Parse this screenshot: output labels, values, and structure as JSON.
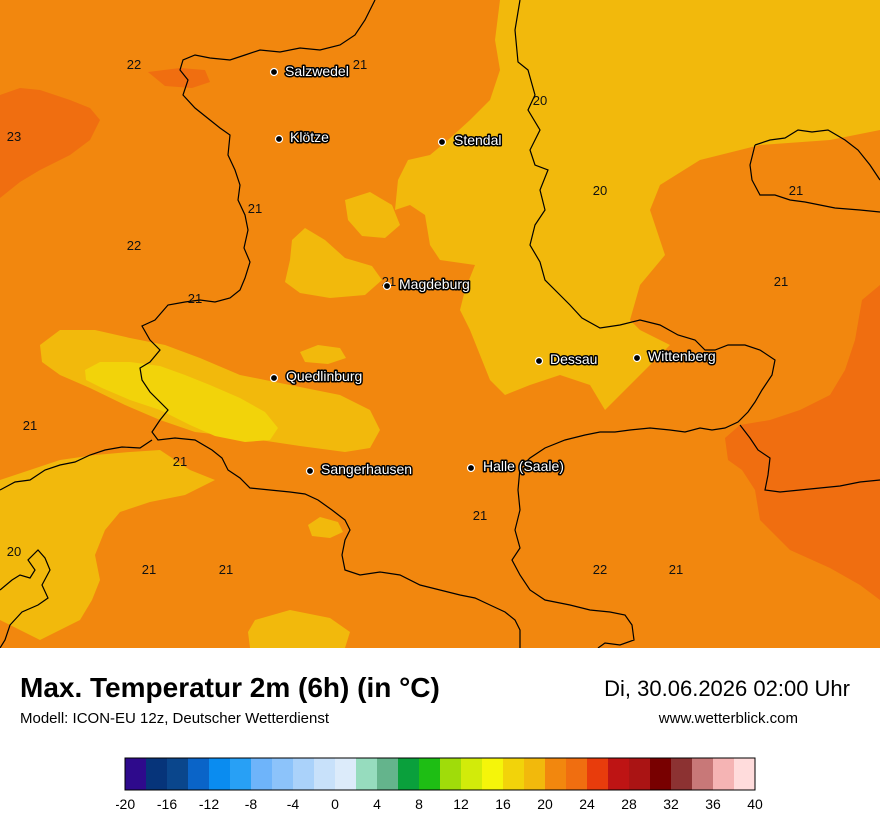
{
  "title": "Max. Temperatur 2m (6h) (in °C)",
  "subtitle": "Modell: ICON-EU 12z, Deutscher Wetterdienst",
  "datetime": "Di, 30.06.2026 02:00 Uhr",
  "website": "www.wetterblick.com",
  "colors": {
    "t19": "#f2d30a",
    "t20": "#f2b90c",
    "t21": "#f2870e",
    "t22": "#f06e10",
    "border": "#000000"
  },
  "cities": [
    {
      "id": "salzwedel",
      "name": "Salzwedel"
    },
    {
      "id": "kloetze",
      "name": "Klötze"
    },
    {
      "id": "stendal",
      "name": "Stendal"
    },
    {
      "id": "magdeburg",
      "name": "Magdeburg"
    },
    {
      "id": "dessau",
      "name": "Dessau"
    },
    {
      "id": "wittenberg",
      "name": "Wittenberg"
    },
    {
      "id": "quedlinburg",
      "name": "Quedlinburg"
    },
    {
      "id": "sangerhausen",
      "name": "Sangerhausen"
    },
    {
      "id": "halle",
      "name": "Halle (Saale)"
    }
  ],
  "isoline_labels": [
    "22",
    "21",
    "23",
    "20",
    "20",
    "21",
    "21",
    "22",
    "21",
    "21",
    "21",
    "21",
    "21",
    "20",
    "21",
    "21",
    "21",
    "22",
    "21"
  ],
  "legend": {
    "colors": [
      "#2e0a8c",
      "#06347a",
      "#0a468c",
      "#0a64c8",
      "#0a8cf0",
      "#28a0f5",
      "#6eb4fa",
      "#8cc3fa",
      "#aad2fa",
      "#c8e1fa",
      "#dcebfa",
      "#96dcbe",
      "#64b48c",
      "#0aa03c",
      "#1ebe14",
      "#a0dc0a",
      "#d2eb0a",
      "#f5f50a",
      "#f2d30a",
      "#f2b90c",
      "#f2870e",
      "#f06e10",
      "#e83c0c",
      "#be1414",
      "#aa1414",
      "#780000",
      "#8c3232",
      "#c87878",
      "#f5b4b4",
      "#ffdcdc"
    ],
    "ticks": [
      "-20",
      "-16",
      "-12",
      "-8",
      "-4",
      "0",
      "4",
      "8",
      "12",
      "16",
      "20",
      "24",
      "28",
      "32",
      "36",
      "40"
    ]
  }
}
